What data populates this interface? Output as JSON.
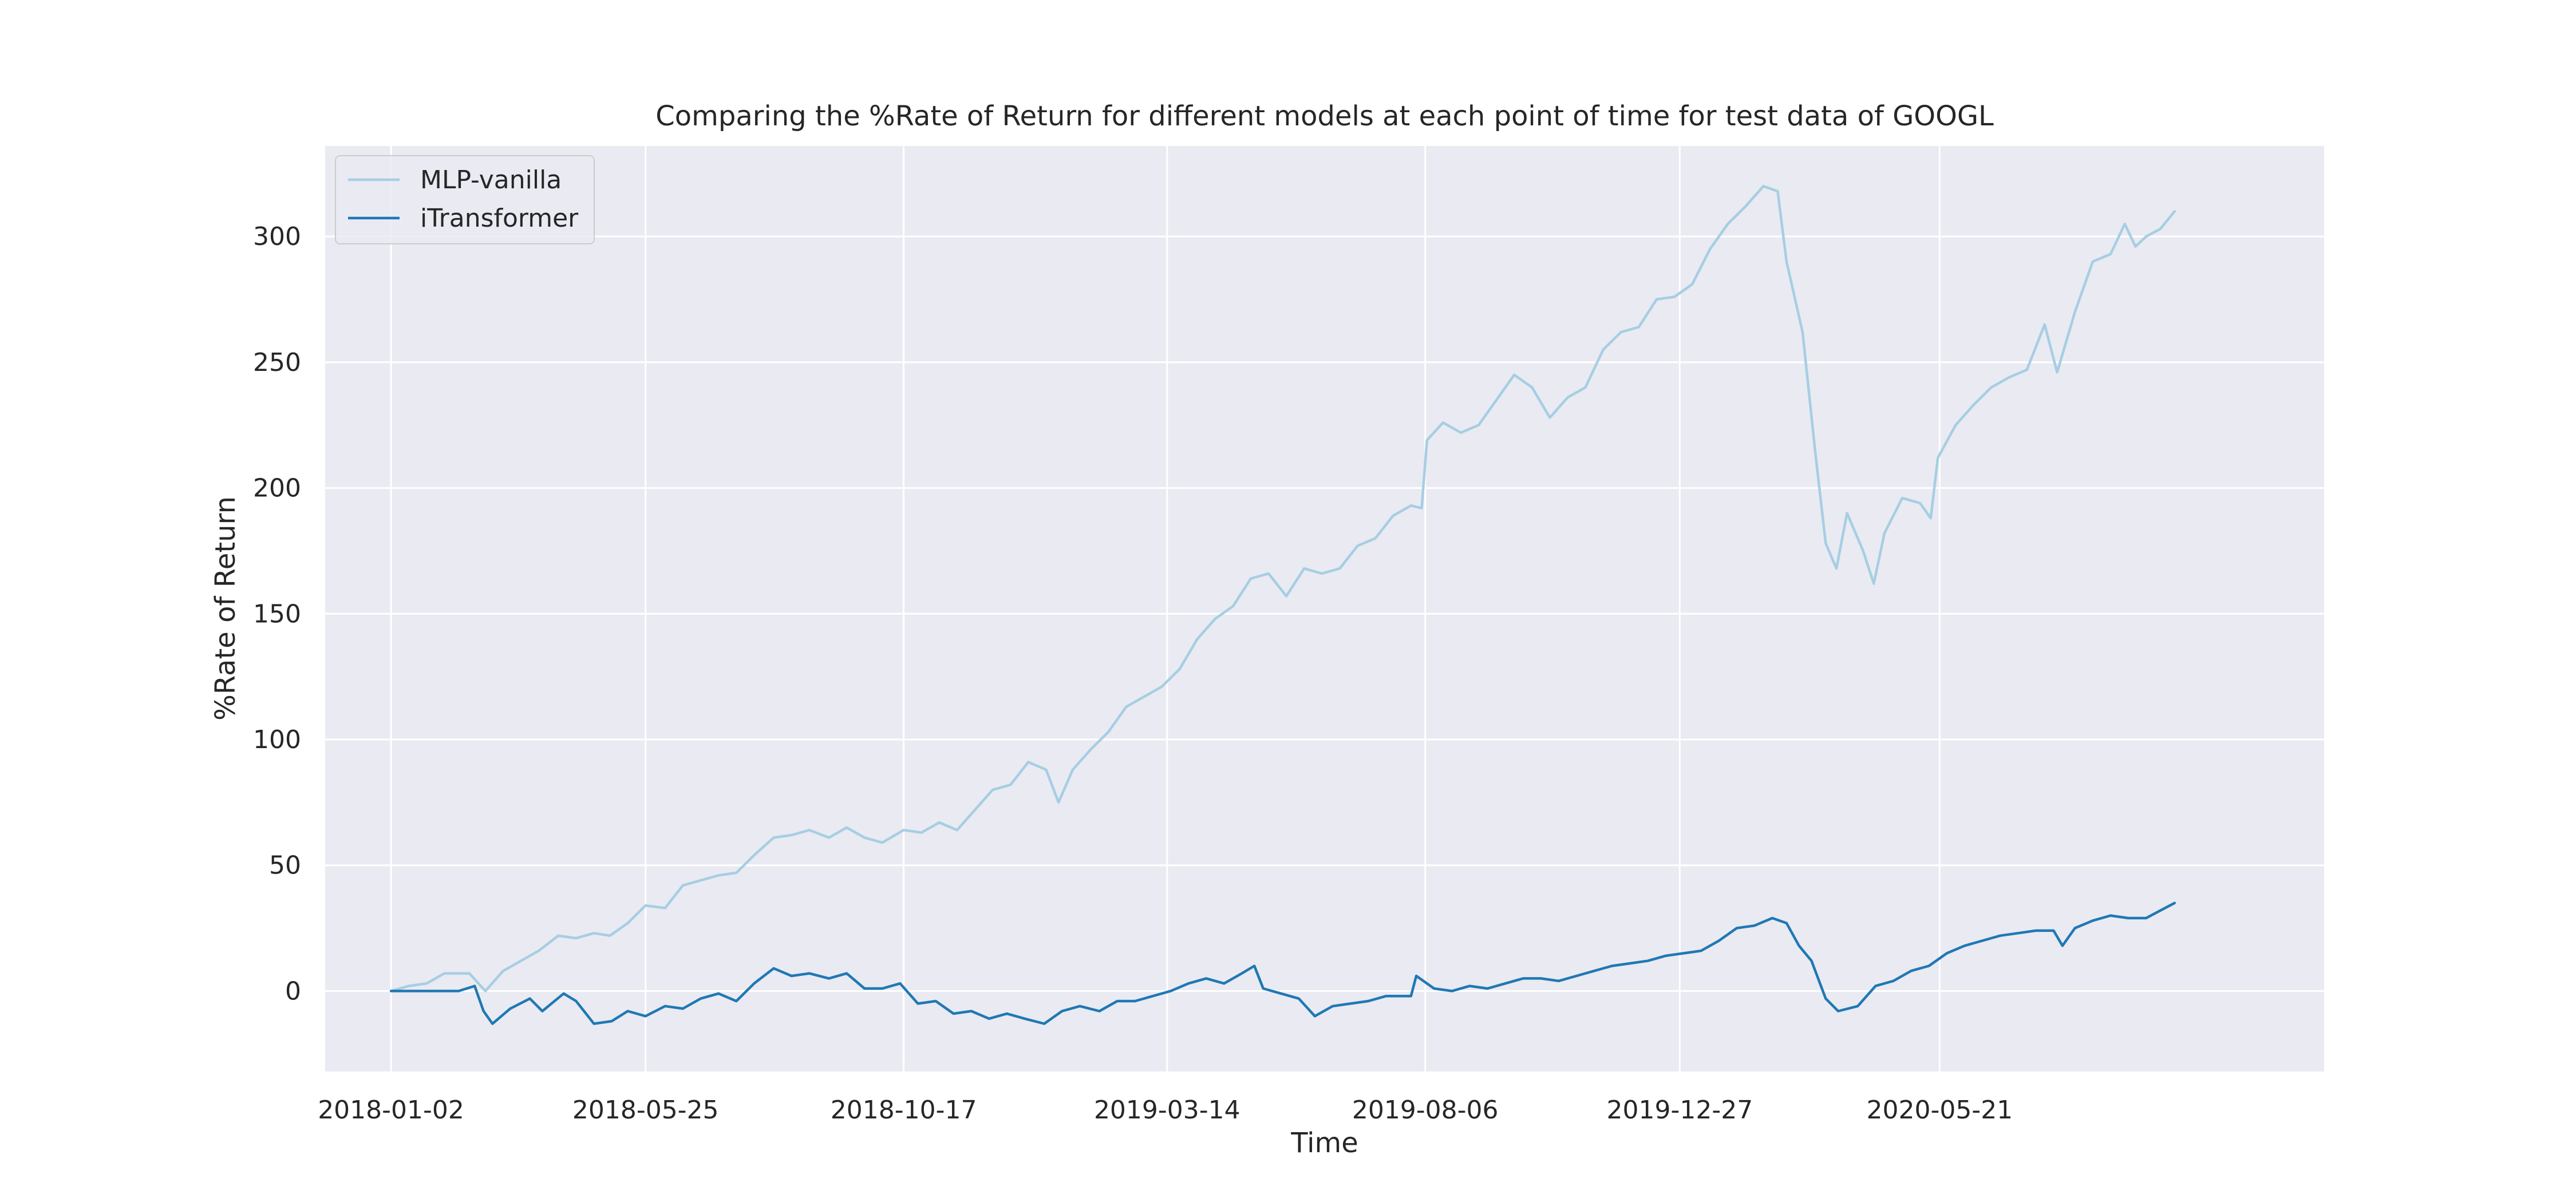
{
  "chart_data": {
    "type": "line",
    "title": "Comparing the %Rate of Return for different models at each point of time for test data of GOOGL",
    "xlabel": "Time",
    "ylabel": "%Rate of Return",
    "x_start": "2018-01-02",
    "x_end": "2020-09-30",
    "xlim": [
      "2017-11-26",
      "2020-12-23"
    ],
    "ylim": [
      -32,
      336
    ],
    "x_ticks": [
      "2018-01-02",
      "2018-05-25",
      "2018-10-17",
      "2019-03-14",
      "2019-08-06",
      "2019-12-27",
      "2020-05-21"
    ],
    "y_ticks": [
      0,
      50,
      100,
      150,
      200,
      250,
      300
    ],
    "grid": true,
    "legend_position": "top-left",
    "background": "#eaeaf2",
    "series": [
      {
        "name": "MLP-vanilla",
        "color": "#a6cee3",
        "points": [
          [
            "2018-01-02",
            0
          ],
          [
            "2018-01-12",
            2
          ],
          [
            "2018-01-22",
            3
          ],
          [
            "2018-02-01",
            7
          ],
          [
            "2018-02-15",
            7
          ],
          [
            "2018-02-24",
            0
          ],
          [
            "2018-03-06",
            8
          ],
          [
            "2018-03-16",
            12
          ],
          [
            "2018-03-26",
            16
          ],
          [
            "2018-04-06",
            22
          ],
          [
            "2018-04-16",
            21
          ],
          [
            "2018-04-26",
            23
          ],
          [
            "2018-05-05",
            22
          ],
          [
            "2018-05-15",
            27
          ],
          [
            "2018-05-25",
            34
          ],
          [
            "2018-06-05",
            33
          ],
          [
            "2018-06-15",
            42
          ],
          [
            "2018-06-25",
            44
          ],
          [
            "2018-07-05",
            46
          ],
          [
            "2018-07-15",
            47
          ],
          [
            "2018-07-25",
            54
          ],
          [
            "2018-08-05",
            61
          ],
          [
            "2018-08-15",
            62
          ],
          [
            "2018-08-25",
            64
          ],
          [
            "2018-09-05",
            61
          ],
          [
            "2018-09-15",
            65
          ],
          [
            "2018-09-25",
            61
          ],
          [
            "2018-10-05",
            59
          ],
          [
            "2018-10-17",
            64
          ],
          [
            "2018-10-27",
            63
          ],
          [
            "2018-11-06",
            67
          ],
          [
            "2018-11-16",
            64
          ],
          [
            "2018-11-26",
            72
          ],
          [
            "2018-12-06",
            80
          ],
          [
            "2018-12-16",
            82
          ],
          [
            "2018-12-26",
            91
          ],
          [
            "2019-01-05",
            88
          ],
          [
            "2019-01-12",
            75
          ],
          [
            "2019-01-20",
            88
          ],
          [
            "2019-01-30",
            96
          ],
          [
            "2019-02-09",
            103
          ],
          [
            "2019-02-19",
            113
          ],
          [
            "2019-03-01",
            117
          ],
          [
            "2019-03-11",
            121
          ],
          [
            "2019-03-21",
            128
          ],
          [
            "2019-03-31",
            140
          ],
          [
            "2019-04-10",
            148
          ],
          [
            "2019-04-20",
            153
          ],
          [
            "2019-04-30",
            164
          ],
          [
            "2019-05-10",
            166
          ],
          [
            "2019-05-20",
            157
          ],
          [
            "2019-05-30",
            168
          ],
          [
            "2019-06-09",
            166
          ],
          [
            "2019-06-19",
            168
          ],
          [
            "2019-06-29",
            177
          ],
          [
            "2019-07-09",
            180
          ],
          [
            "2019-07-19",
            189
          ],
          [
            "2019-07-29",
            193
          ],
          [
            "2019-08-04",
            192
          ],
          [
            "2019-08-07",
            219
          ],
          [
            "2019-08-16",
            226
          ],
          [
            "2019-08-26",
            222
          ],
          [
            "2019-09-05",
            225
          ],
          [
            "2019-09-15",
            235
          ],
          [
            "2019-09-25",
            245
          ],
          [
            "2019-10-05",
            240
          ],
          [
            "2019-10-15",
            228
          ],
          [
            "2019-10-25",
            236
          ],
          [
            "2019-11-04",
            240
          ],
          [
            "2019-11-14",
            255
          ],
          [
            "2019-11-24",
            262
          ],
          [
            "2019-12-04",
            264
          ],
          [
            "2019-12-14",
            275
          ],
          [
            "2019-12-24",
            276
          ],
          [
            "2020-01-03",
            281
          ],
          [
            "2020-01-13",
            295
          ],
          [
            "2020-01-23",
            305
          ],
          [
            "2020-02-02",
            312
          ],
          [
            "2020-02-12",
            320
          ],
          [
            "2020-02-20",
            318
          ],
          [
            "2020-02-25",
            290
          ],
          [
            "2020-03-05",
            262
          ],
          [
            "2020-03-12",
            215
          ],
          [
            "2020-03-18",
            178
          ],
          [
            "2020-03-24",
            168
          ],
          [
            "2020-03-30",
            190
          ],
          [
            "2020-04-08",
            175
          ],
          [
            "2020-04-14",
            162
          ],
          [
            "2020-04-20",
            182
          ],
          [
            "2020-04-30",
            196
          ],
          [
            "2020-05-10",
            194
          ],
          [
            "2020-05-16",
            188
          ],
          [
            "2020-05-20",
            212
          ],
          [
            "2020-05-30",
            225
          ],
          [
            "2020-06-09",
            233
          ],
          [
            "2020-06-19",
            240
          ],
          [
            "2020-06-29",
            244
          ],
          [
            "2020-07-09",
            247
          ],
          [
            "2020-07-19",
            265
          ],
          [
            "2020-07-26",
            246
          ],
          [
            "2020-08-05",
            270
          ],
          [
            "2020-08-15",
            290
          ],
          [
            "2020-08-25",
            293
          ],
          [
            "2020-09-02",
            305
          ],
          [
            "2020-09-08",
            296
          ],
          [
            "2020-09-14",
            300
          ],
          [
            "2020-09-22",
            303
          ],
          [
            "2020-09-30",
            310
          ]
        ]
      },
      {
        "name": "iTransformer",
        "color": "#1f78b4",
        "points": [
          [
            "2018-01-02",
            0
          ],
          [
            "2018-02-09",
            0
          ],
          [
            "2018-02-18",
            2
          ],
          [
            "2018-02-23",
            -8
          ],
          [
            "2018-02-28",
            -13
          ],
          [
            "2018-03-10",
            -7
          ],
          [
            "2018-03-21",
            -3
          ],
          [
            "2018-03-28",
            -8
          ],
          [
            "2018-04-09",
            -1
          ],
          [
            "2018-04-16",
            -4
          ],
          [
            "2018-04-26",
            -13
          ],
          [
            "2018-05-06",
            -12
          ],
          [
            "2018-05-15",
            -8
          ],
          [
            "2018-05-25",
            -10
          ],
          [
            "2018-06-05",
            -6
          ],
          [
            "2018-06-15",
            -7
          ],
          [
            "2018-06-25",
            -3
          ],
          [
            "2018-07-05",
            -1
          ],
          [
            "2018-07-15",
            -4
          ],
          [
            "2018-07-25",
            3
          ],
          [
            "2018-08-05",
            9
          ],
          [
            "2018-08-15",
            6
          ],
          [
            "2018-08-25",
            7
          ],
          [
            "2018-09-05",
            5
          ],
          [
            "2018-09-15",
            7
          ],
          [
            "2018-09-25",
            1
          ],
          [
            "2018-10-05",
            1
          ],
          [
            "2018-10-15",
            3
          ],
          [
            "2018-10-25",
            -5
          ],
          [
            "2018-11-04",
            -4
          ],
          [
            "2018-11-14",
            -9
          ],
          [
            "2018-11-24",
            -8
          ],
          [
            "2018-12-04",
            -11
          ],
          [
            "2018-12-14",
            -9
          ],
          [
            "2018-12-24",
            -11
          ],
          [
            "2019-01-04",
            -13
          ],
          [
            "2019-01-14",
            -8
          ],
          [
            "2019-01-24",
            -6
          ],
          [
            "2019-02-04",
            -8
          ],
          [
            "2019-02-14",
            -4
          ],
          [
            "2019-02-24",
            -4
          ],
          [
            "2019-03-06",
            -2
          ],
          [
            "2019-03-16",
            0
          ],
          [
            "2019-03-26",
            3
          ],
          [
            "2019-04-05",
            5
          ],
          [
            "2019-04-15",
            3
          ],
          [
            "2019-04-25",
            7
          ],
          [
            "2019-05-02",
            10
          ],
          [
            "2019-05-07",
            1
          ],
          [
            "2019-05-17",
            -1
          ],
          [
            "2019-05-27",
            -3
          ],
          [
            "2019-06-05",
            -10
          ],
          [
            "2019-06-15",
            -6
          ],
          [
            "2019-06-25",
            -5
          ],
          [
            "2019-07-05",
            -4
          ],
          [
            "2019-07-15",
            -2
          ],
          [
            "2019-07-29",
            -2
          ],
          [
            "2019-08-01",
            6
          ],
          [
            "2019-08-11",
            1
          ],
          [
            "2019-08-21",
            0
          ],
          [
            "2019-08-31",
            2
          ],
          [
            "2019-09-10",
            1
          ],
          [
            "2019-09-20",
            3
          ],
          [
            "2019-09-30",
            5
          ],
          [
            "2019-10-10",
            5
          ],
          [
            "2019-10-20",
            4
          ],
          [
            "2019-10-30",
            6
          ],
          [
            "2019-11-09",
            8
          ],
          [
            "2019-11-19",
            10
          ],
          [
            "2019-11-29",
            11
          ],
          [
            "2019-12-09",
            12
          ],
          [
            "2019-12-19",
            14
          ],
          [
            "2019-12-29",
            15
          ],
          [
            "2020-01-08",
            16
          ],
          [
            "2020-01-18",
            20
          ],
          [
            "2020-01-28",
            25
          ],
          [
            "2020-02-07",
            26
          ],
          [
            "2020-02-17",
            29
          ],
          [
            "2020-02-25",
            27
          ],
          [
            "2020-03-03",
            18
          ],
          [
            "2020-03-10",
            12
          ],
          [
            "2020-03-18",
            -3
          ],
          [
            "2020-03-25",
            -8
          ],
          [
            "2020-04-05",
            -6
          ],
          [
            "2020-04-15",
            2
          ],
          [
            "2020-04-25",
            4
          ],
          [
            "2020-05-05",
            8
          ],
          [
            "2020-05-15",
            10
          ],
          [
            "2020-05-25",
            15
          ],
          [
            "2020-06-04",
            18
          ],
          [
            "2020-06-14",
            20
          ],
          [
            "2020-06-24",
            22
          ],
          [
            "2020-07-04",
            23
          ],
          [
            "2020-07-14",
            24
          ],
          [
            "2020-07-24",
            24
          ],
          [
            "2020-07-29",
            18
          ],
          [
            "2020-08-05",
            25
          ],
          [
            "2020-08-15",
            28
          ],
          [
            "2020-08-25",
            30
          ],
          [
            "2020-09-04",
            29
          ],
          [
            "2020-09-14",
            29
          ],
          [
            "2020-09-22",
            32
          ],
          [
            "2020-09-30",
            35
          ]
        ]
      }
    ]
  }
}
